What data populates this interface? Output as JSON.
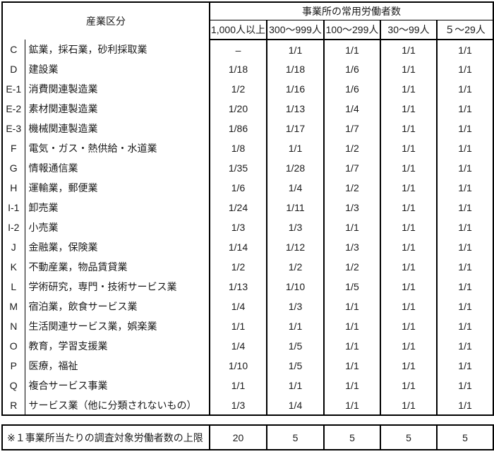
{
  "main_table": {
    "header": {
      "industry_col": "産業区分",
      "group": "事業所の常用労働者数",
      "size_cols": [
        "1,000人以上",
        "300～999人",
        "100～299人",
        "30～99人",
        "５～29人"
      ]
    },
    "rows": [
      {
        "code": "C",
        "name": "鉱業，採石業，砂利採取業",
        "rates": [
          "–",
          "1/1",
          "1/1",
          "1/1",
          "1/1"
        ]
      },
      {
        "code": "D",
        "name": "建設業",
        "rates": [
          "1/18",
          "1/18",
          "1/6",
          "1/1",
          "1/1"
        ]
      },
      {
        "code": "E-1",
        "name": "消費関連製造業",
        "rates": [
          "1/2",
          "1/16",
          "1/6",
          "1/1",
          "1/1"
        ]
      },
      {
        "code": "E-2",
        "name": "素材関連製造業",
        "rates": [
          "1/20",
          "1/13",
          "1/4",
          "1/1",
          "1/1"
        ]
      },
      {
        "code": "E-3",
        "name": "機械関連製造業",
        "rates": [
          "1/86",
          "1/17",
          "1/7",
          "1/1",
          "1/1"
        ]
      },
      {
        "code": "F",
        "name": "電気・ガス・熱供給・水道業",
        "rates": [
          "1/8",
          "1/1",
          "1/2",
          "1/1",
          "1/1"
        ]
      },
      {
        "code": "G",
        "name": "情報通信業",
        "rates": [
          "1/35",
          "1/28",
          "1/7",
          "1/1",
          "1/1"
        ]
      },
      {
        "code": "H",
        "name": "運輸業，郵便業",
        "rates": [
          "1/6",
          "1/4",
          "1/2",
          "1/1",
          "1/1"
        ]
      },
      {
        "code": "I-1",
        "name": "卸売業",
        "rates": [
          "1/24",
          "1/11",
          "1/3",
          "1/1",
          "1/1"
        ]
      },
      {
        "code": "I-2",
        "name": "小売業",
        "rates": [
          "1/3",
          "1/3",
          "1/1",
          "1/1",
          "1/1"
        ]
      },
      {
        "code": "J",
        "name": "金融業，保険業",
        "rates": [
          "1/14",
          "1/12",
          "1/3",
          "1/1",
          "1/1"
        ]
      },
      {
        "code": "K",
        "name": "不動産業，物品賃貸業",
        "rates": [
          "1/2",
          "1/2",
          "1/2",
          "1/1",
          "1/1"
        ]
      },
      {
        "code": "L",
        "name": "学術研究，専門・技術サービス業",
        "rates": [
          "1/13",
          "1/10",
          "1/5",
          "1/1",
          "1/1"
        ]
      },
      {
        "code": "M",
        "name": "宿泊業，飲食サービス業",
        "rates": [
          "1/4",
          "1/3",
          "1/1",
          "1/1",
          "1/1"
        ]
      },
      {
        "code": "N",
        "name": "生活関連サービス業，娯楽業",
        "rates": [
          "1/1",
          "1/1",
          "1/1",
          "1/1",
          "1/1"
        ]
      },
      {
        "code": "O",
        "name": "教育，学習支援業",
        "rates": [
          "1/4",
          "1/5",
          "1/1",
          "1/1",
          "1/1"
        ]
      },
      {
        "code": "P",
        "name": "医療，福祉",
        "rates": [
          "1/10",
          "1/5",
          "1/1",
          "1/1",
          "1/1"
        ]
      },
      {
        "code": "Q",
        "name": "複合サービス事業",
        "rates": [
          "1/1",
          "1/1",
          "1/1",
          "1/1",
          "1/1"
        ]
      },
      {
        "code": "R",
        "name": "サービス業（他に分類されないもの）",
        "rates": [
          "1/3",
          "1/4",
          "1/1",
          "1/1",
          "1/1"
        ]
      }
    ]
  },
  "footer_table": {
    "label": "※１事業所当たりの調査対象労働者数の上限",
    "values": [
      "20",
      "5",
      "5",
      "5",
      "5"
    ]
  }
}
